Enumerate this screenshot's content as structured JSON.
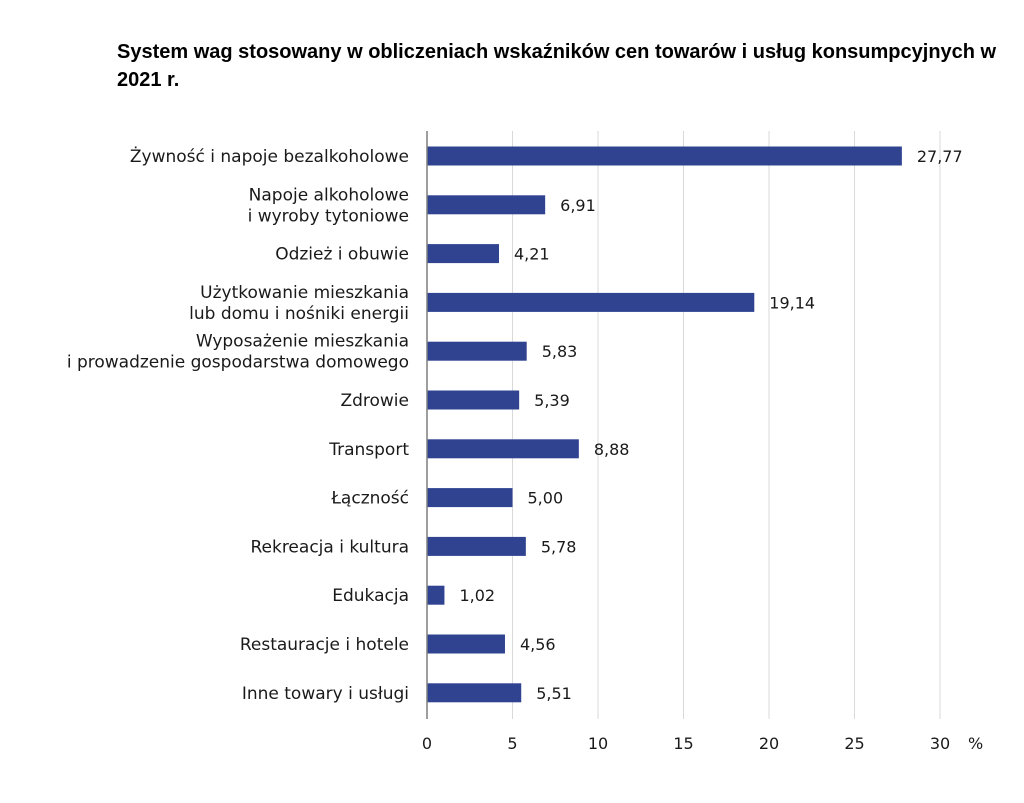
{
  "chart_data": {
    "type": "bar",
    "orientation": "horizontal",
    "title": "System wag stosowany w obliczeniach wskaźników cen towarów i usług konsumpcyjnych w 2021 r.",
    "categories": [
      [
        "Żywność i napoje bezalkoholowe"
      ],
      [
        "Napoje alkoholowe",
        "i wyroby tytoniowe"
      ],
      [
        "Odzież i obuwie"
      ],
      [
        "Użytkowanie mieszkania",
        "lub domu i nośniki energii"
      ],
      [
        "Wyposażenie mieszkania",
        "i prowadzenie gospodarstwa domowego"
      ],
      [
        "Zdrowie"
      ],
      [
        "Transport"
      ],
      [
        "Łączność"
      ],
      [
        "Rekreacja i kultura"
      ],
      [
        "Edukacja"
      ],
      [
        "Restauracje i hotele"
      ],
      [
        "Inne towary i usługi"
      ]
    ],
    "values": [
      27.77,
      6.91,
      4.21,
      19.14,
      5.83,
      5.39,
      8.88,
      5.0,
      5.78,
      1.02,
      4.56,
      5.51
    ],
    "value_labels": [
      "27,77",
      "6,91",
      "4,21",
      "19,14",
      "5,83",
      "5,39",
      "8,88",
      "5,00",
      "5,78",
      "1,02",
      "4,56",
      "5,51"
    ],
    "xlim": [
      0,
      30
    ],
    "xticks": [
      0,
      5,
      10,
      15,
      20,
      25,
      30
    ],
    "xunit": "%",
    "grid": true,
    "bar_color": "#2f4391",
    "grid_color": "#d9d9d9",
    "axis_color": "#7f7f7f"
  }
}
